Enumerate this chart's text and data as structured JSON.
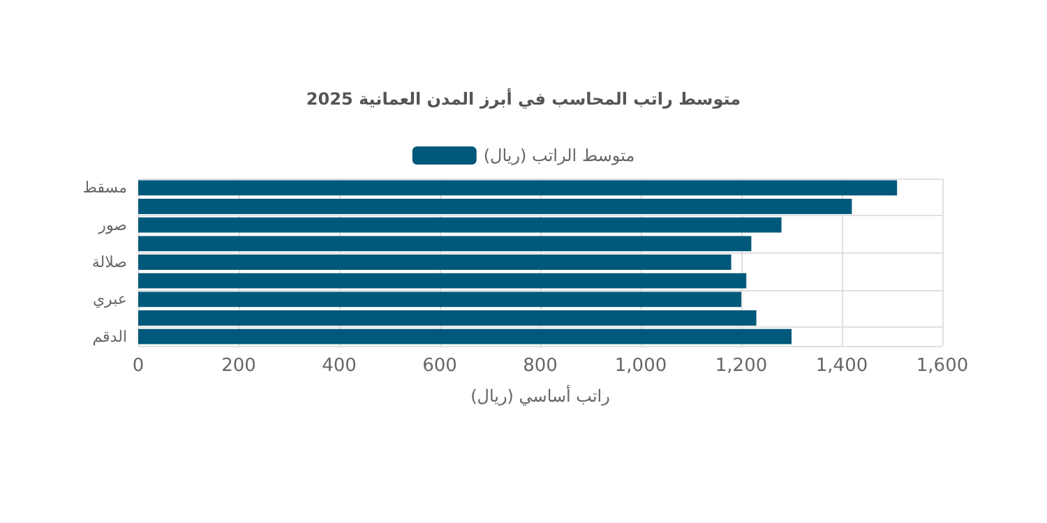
{
  "chart_data": {
    "type": "bar",
    "orientation": "horizontal",
    "title": "متوسط راتب المحاسب في أبرز المدن العمانية 2025",
    "xlabel": "راتب أساسي (ريال)",
    "categories": [
      "مسقط",
      null,
      "صور",
      null,
      "صلالة",
      null,
      "عبري",
      null,
      "الدقم"
    ],
    "series": [
      {
        "name": "متوسط الراتب (ريال)",
        "color": "#00587a",
        "values": [
          1510,
          1420,
          1280,
          1220,
          1180,
          1210,
          1200,
          1230,
          1300
        ]
      }
    ],
    "xlim": [
      0,
      1600
    ],
    "xticks": [
      0,
      200,
      400,
      600,
      800,
      {
        "value": 1000,
        "label": "1,000"
      },
      {
        "value": 1200,
        "label": "1,200"
      },
      {
        "value": 1400,
        "label": "1,400"
      },
      {
        "value": 1600,
        "label": "1,600"
      }
    ],
    "grid": true,
    "legend": "top"
  }
}
